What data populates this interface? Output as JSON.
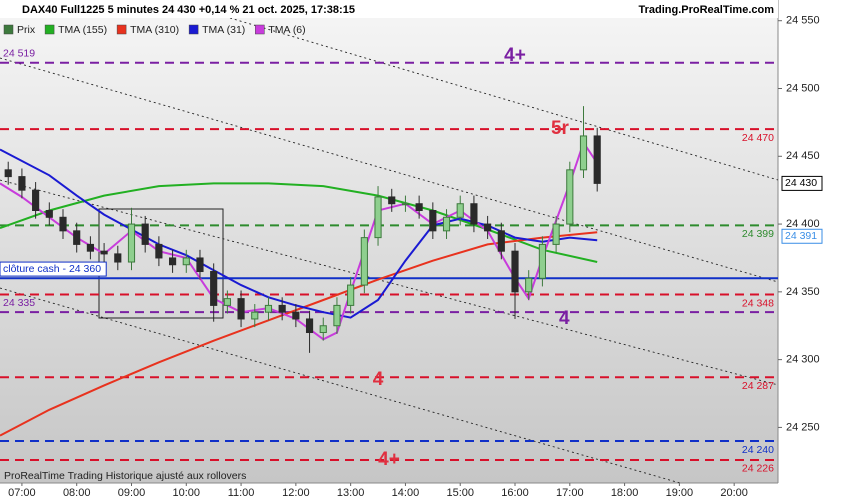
{
  "chart_data": {
    "type": "candlestick",
    "title": "DAX40 Full1225 5 minutes 24 430 +0,14 % 21 oct. 2025, 17:38:15",
    "source": "Trading.ProRealTime.com",
    "footer": "ProRealTime Trading  Historique ajusté aux rollovers",
    "xlim": [
      6.6,
      20.8
    ],
    "xticks": [
      {
        "value": 7,
        "label": "07:00"
      },
      {
        "value": 8,
        "label": "08:00"
      },
      {
        "value": 9,
        "label": "09:00"
      },
      {
        "value": 10,
        "label": "10:00"
      },
      {
        "value": 11,
        "label": "11:00"
      },
      {
        "value": 12,
        "label": "12:00"
      },
      {
        "value": 13,
        "label": "13:00"
      },
      {
        "value": 14,
        "label": "14:00"
      },
      {
        "value": 15,
        "label": "15:00"
      },
      {
        "value": 16,
        "label": "16:00"
      },
      {
        "value": 17,
        "label": "17:00"
      },
      {
        "value": 18,
        "label": "18:00"
      },
      {
        "value": 19,
        "label": "19:00"
      },
      {
        "value": 20,
        "label": "20:00"
      }
    ],
    "ylim": [
      24209,
      24552
    ],
    "yticks": [
      {
        "value": 24250,
        "label": "24 250"
      },
      {
        "value": 24300,
        "label": "24 300"
      },
      {
        "value": 24350,
        "label": "24 350"
      },
      {
        "value": 24400,
        "label": "24 400"
      },
      {
        "value": 24450,
        "label": "24 450"
      },
      {
        "value": 24500,
        "label": "24 500"
      },
      {
        "value": 24550,
        "label": "24 550"
      }
    ],
    "grid": false,
    "candles": {
      "name": "Prix",
      "up_color": "#3d7a3d",
      "down_color": "#2a2a2a",
      "x": [
        6.75,
        7,
        7.25,
        7.5,
        7.75,
        8,
        8.25,
        8.5,
        8.75,
        9,
        9.25,
        9.5,
        9.75,
        10,
        10.25,
        10.5,
        10.75,
        11,
        11.25,
        11.5,
        11.75,
        12,
        12.25,
        12.5,
        12.75,
        13,
        13.25,
        13.5,
        13.75,
        14,
        14.25,
        14.5,
        14.75,
        15,
        15.25,
        15.5,
        15.75,
        16,
        16.25,
        16.5,
        16.75,
        17,
        17.25,
        17.5
      ],
      "open": [
        24440,
        24435,
        24425,
        24410,
        24405,
        24395,
        24385,
        24380,
        24378,
        24372,
        24400,
        24385,
        24375,
        24370,
        24375,
        24365,
        24340,
        24345,
        24330,
        24335,
        24340,
        24335,
        24330,
        24320,
        24325,
        24340,
        24355,
        24390,
        24420,
        24415,
        24415,
        24410,
        24395,
        24405,
        24415,
        24400,
        24395,
        24380,
        24350,
        24360,
        24385,
        24400,
        24440,
        24465
      ],
      "high": [
        24446,
        24441,
        24431,
        24416,
        24411,
        24401,
        24391,
        24386,
        24384,
        24412,
        24406,
        24391,
        24381,
        24381,
        24381,
        24371,
        24351,
        24351,
        24341,
        24346,
        24346,
        24341,
        24336,
        24331,
        24346,
        24361,
        24396,
        24428,
        24426,
        24421,
        24421,
        24416,
        24411,
        24421,
        24421,
        24406,
        24401,
        24386,
        24366,
        24391,
        24406,
        24446,
        24487,
        24471
      ],
      "low": [
        24429,
        24419,
        24404,
        24399,
        24389,
        24379,
        24374,
        24372,
        24366,
        24366,
        24379,
        24369,
        24364,
        24364,
        24359,
        24328,
        24334,
        24324,
        24324,
        24329,
        24329,
        24324,
        24305,
        24314,
        24319,
        24334,
        24349,
        24384,
        24409,
        24409,
        24404,
        24389,
        24389,
        24399,
        24394,
        24389,
        24374,
        24330,
        24344,
        24354,
        24379,
        24394,
        24434,
        24424
      ],
      "close": [
        24435,
        24425,
        24410,
        24405,
        24395,
        24385,
        24380,
        24378,
        24372,
        24400,
        24385,
        24375,
        24370,
        24375,
        24365,
        24340,
        24345,
        24330,
        24335,
        24340,
        24335,
        24330,
        24320,
        24325,
        24340,
        24355,
        24390,
        24420,
        24415,
        24415,
        24410,
        24395,
        24405,
        24415,
        24400,
        24395,
        24380,
        24350,
        24360,
        24385,
        24400,
        24440,
        24465,
        24430
      ]
    },
    "series": [
      {
        "name": "TMA (155)",
        "color": "#22b022",
        "x": [
          6.6,
          7.5,
          8.5,
          9.5,
          10.5,
          11.5,
          12.5,
          13.5,
          14.5,
          15.5,
          16.5,
          17.5
        ],
        "values": [
          24397,
          24410,
          24421,
          24428,
          24430,
          24430,
          24428,
          24421,
          24410,
          24396,
          24381,
          24372
        ]
      },
      {
        "name": "TMA (310)",
        "color": "#e8321e",
        "x": [
          6.6,
          7.5,
          8.5,
          9.5,
          10.5,
          11.5,
          12.5,
          13.5,
          14.5,
          15.5,
          16.5,
          17.5
        ],
        "values": [
          24244,
          24263,
          24281,
          24298,
          24314,
          24329,
          24344,
          24359,
          24373,
          24385,
          24390,
          24394
        ]
      },
      {
        "name": "TMA (31)",
        "color": "#1a1ad2",
        "x": [
          6.6,
          7.5,
          8,
          8.5,
          9,
          9.5,
          10,
          10.5,
          11,
          11.5,
          12,
          12.5,
          13,
          13.5,
          14,
          14.5,
          15,
          15.5,
          16,
          16.5,
          17,
          17.5
        ],
        "values": [
          24455,
          24436,
          24421,
          24407,
          24396,
          24385,
          24377,
          24366,
          24355,
          24346,
          24340,
          24335,
          24331,
          24344,
          24373,
          24399,
          24404,
          24399,
          24390,
          24387,
          24390,
          24388
        ]
      },
      {
        "name": "TMA (6)",
        "color": "#c83cdc",
        "x": [
          6.6,
          7,
          7.5,
          8,
          8.5,
          9,
          9.5,
          10,
          10.5,
          11,
          11.5,
          12,
          12.5,
          12.75,
          13,
          13.5,
          14,
          14.5,
          15,
          15.5,
          16,
          16.25,
          16.5,
          17,
          17.25,
          17.5
        ],
        "values": [
          24430,
          24420,
          24405,
          24390,
          24378,
          24395,
          24380,
          24375,
          24345,
          24335,
          24338,
          24330,
          24315,
          24320,
          24350,
          24410,
          24415,
          24400,
          24410,
          24395,
          24360,
          24345,
          24375,
          24430,
          24460,
          24445
        ]
      }
    ],
    "levels": [
      {
        "value": 24519,
        "label": "24 519",
        "color": "#7a1fa2",
        "side": "left"
      },
      {
        "value": 24470,
        "label": "24 470",
        "color": "#d8102a",
        "side": "right"
      },
      {
        "value": 24399,
        "label": "24 399",
        "color": "#2e8b2e",
        "side": "right"
      },
      {
        "value": 24360,
        "label": "clôture cash - 24 360",
        "color": "#1030c8",
        "side": "left",
        "solid": true
      },
      {
        "value": 24348,
        "label": "24 348",
        "color": "#d8102a",
        "side": "right"
      },
      {
        "value": 24335,
        "label": "24 335",
        "color": "#7a1fa2",
        "side": "left"
      },
      {
        "value": 24287,
        "label": "24 287",
        "color": "#d8102a",
        "side": "right"
      },
      {
        "value": 24240,
        "label": "24 240",
        "color": "#1030c8",
        "side": "right"
      },
      {
        "value": 24226,
        "label": "24 226",
        "color": "#d8102a",
        "side": "right"
      }
    ],
    "markers": [
      {
        "value": 24430,
        "label": "24 430",
        "color": "#000000"
      },
      {
        "value": 24391,
        "label": "24 391",
        "color": "#3a8ee6"
      }
    ],
    "annotations": [
      {
        "text": "4+",
        "x": 16.0,
        "y": 24524,
        "color": "#7a1fa2"
      },
      {
        "text": "5r",
        "x": 16.82,
        "y": 24470,
        "color": "#e03040"
      },
      {
        "text": "4",
        "x": 16.9,
        "y": 24330,
        "color": "#7a1fa2"
      },
      {
        "text": "4",
        "x": 13.5,
        "y": 24285,
        "color": "#e03040"
      },
      {
        "text": "4+",
        "x": 13.7,
        "y": 24226,
        "color": "#e03040"
      }
    ]
  }
}
